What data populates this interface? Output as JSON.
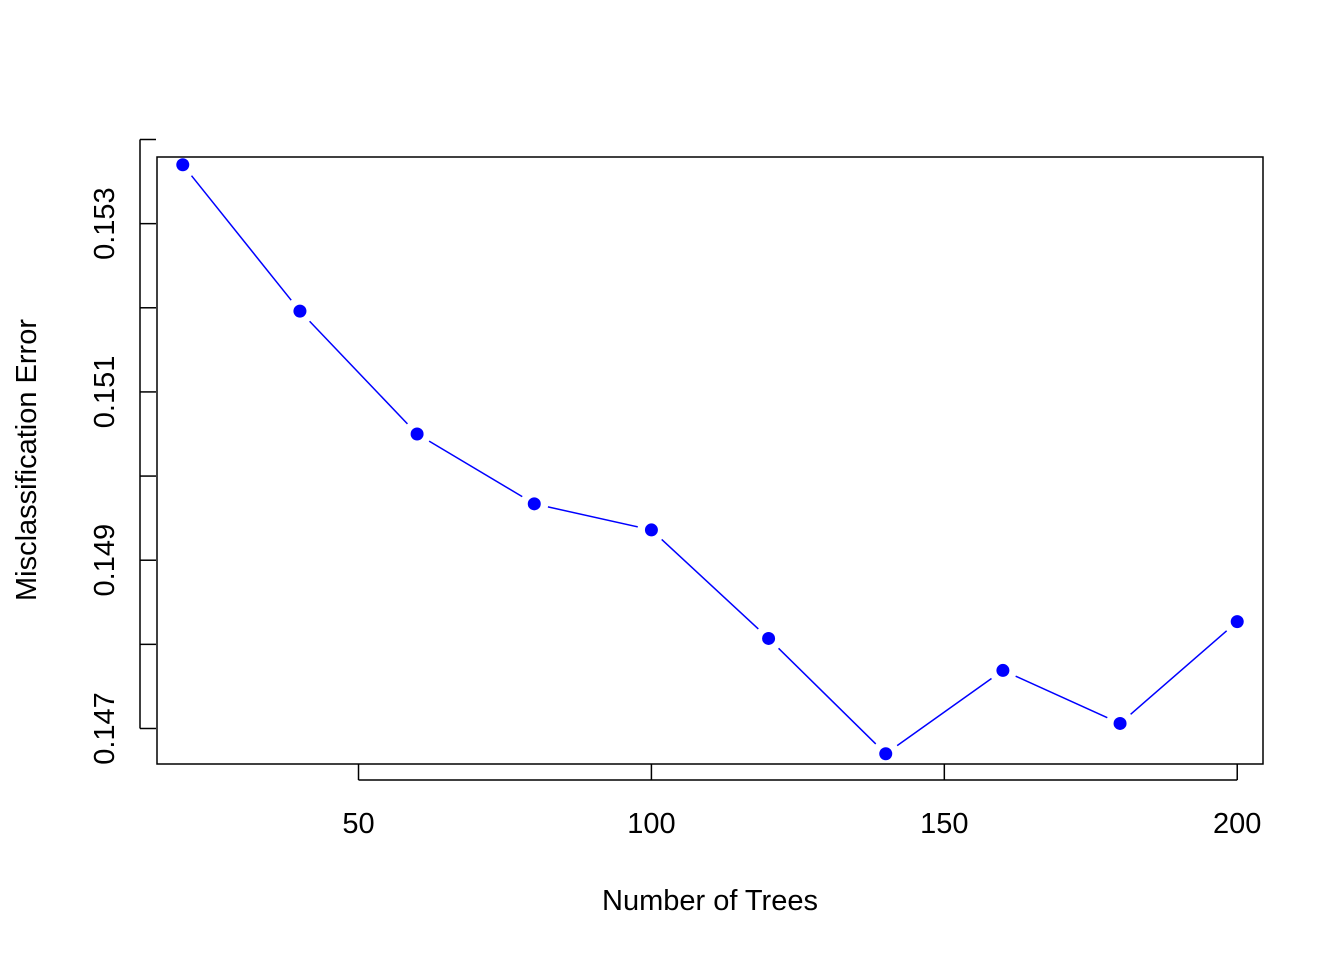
{
  "chart_data": {
    "type": "line",
    "title": "",
    "xlabel": "Number of Trees",
    "ylabel": "Misclassification Error",
    "x": [
      20,
      40,
      60,
      80,
      100,
      120,
      140,
      160,
      180,
      200
    ],
    "series": [
      {
        "values": [
          0.1537,
          0.15196,
          0.1505,
          0.14967,
          0.14936,
          0.14807,
          0.1467,
          0.14769,
          0.14706,
          0.14827
        ]
      }
    ],
    "xlim": [
      15.6,
      204.4
    ],
    "ylim": [
      0.146578,
      0.153792
    ],
    "x_ticks": [
      50,
      100,
      150,
      200
    ],
    "y_ticks_major": [
      0.147,
      0.149,
      0.151,
      0.153
    ],
    "y_ticks_minor": [
      0.148,
      0.15,
      0.152,
      0.154
    ],
    "x_tick_labels": [
      "50",
      "100",
      "150",
      "200"
    ],
    "y_tick_labels": [
      "0.147",
      "0.149",
      "0.151",
      "0.153"
    ],
    "style": "points connected by line segments",
    "series_color": "#0000FF",
    "grid": false,
    "legend": "none"
  }
}
